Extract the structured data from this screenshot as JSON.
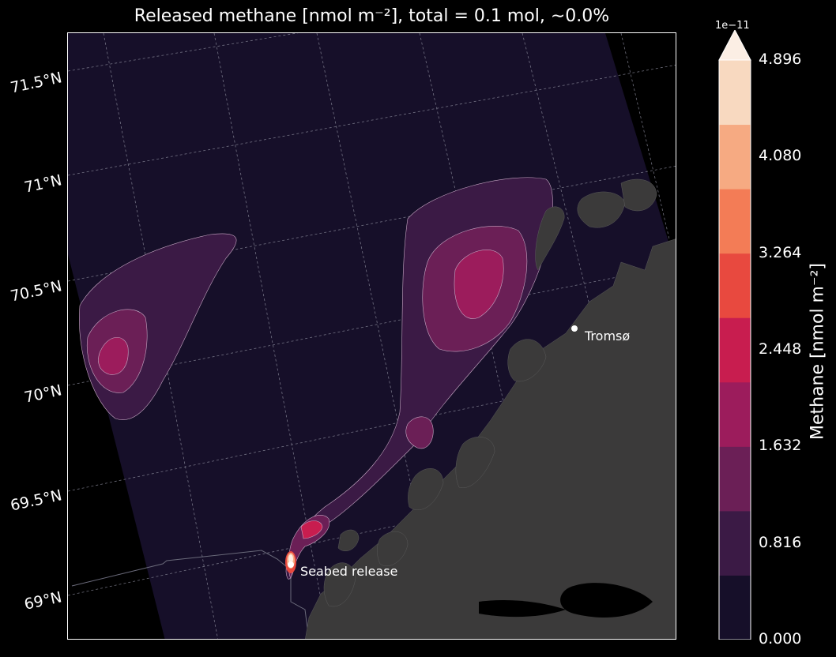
{
  "title": "Released methane [nmol m⁻²], total = 0.1 mol, ∼0.0%",
  "latitudes": [
    "71.5°N",
    "71°N",
    "70.5°N",
    "70°N",
    "69.5°N",
    "69°N"
  ],
  "places": {
    "tromso": "Tromsø",
    "release": "Seabed release"
  },
  "colorbar": {
    "exponent": "1e−11",
    "label": "Methane [nmol m⁻²]",
    "ticks": [
      "4.896",
      "4.080",
      "3.264",
      "2.448",
      "1.632",
      "0.816",
      "0.000"
    ],
    "levels": [
      0,
      0.408,
      0.816,
      1.224,
      1.632,
      2.04,
      2.448,
      2.856,
      3.264,
      3.672,
      4.08,
      4.488,
      4.896
    ],
    "colors": [
      "#160f29",
      "#3b1a45",
      "#6b1f56",
      "#9c1c5c",
      "#c81d4f",
      "#e8493f",
      "#f37c56",
      "#f6aa82",
      "#f8d9c0"
    ],
    "extend_color": "#fbeee4"
  },
  "theme": {
    "ocean": "#160f29",
    "land": "#3b3a3a",
    "background": "#000000"
  }
}
